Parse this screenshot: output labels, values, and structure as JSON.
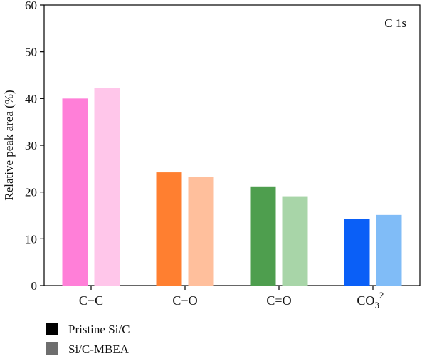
{
  "chart_data": {
    "type": "bar",
    "annotation": "C 1s",
    "xlabel": "",
    "ylabel": "Relative peak area (%)",
    "ylim": [
      0,
      60
    ],
    "yticks": [
      0,
      10,
      20,
      30,
      40,
      50,
      60
    ],
    "categories": [
      {
        "label": "C−C"
      },
      {
        "label": "C−O"
      },
      {
        "label": "C=O"
      },
      {
        "label": "CO",
        "sub": "3",
        "sup": "2−"
      }
    ],
    "series": [
      {
        "name": "Pristine Si/C",
        "legend_color": "#000000",
        "values": [
          40.0,
          24.2,
          21.2,
          14.2
        ]
      },
      {
        "name": "Si/C-MBEA",
        "legend_color": "#6e6e6e",
        "values": [
          42.2,
          23.3,
          19.1,
          15.1
        ]
      }
    ],
    "bar_colors": [
      [
        "#ff7fd8",
        "#ffc6ea"
      ],
      [
        "#ff7f30",
        "#ffbf9c"
      ],
      [
        "#4e9e4e",
        "#a8d5a8"
      ],
      [
        "#0a5ff7",
        "#80bcf7"
      ]
    ],
    "grid": false,
    "legend_position": "bottom-left"
  }
}
